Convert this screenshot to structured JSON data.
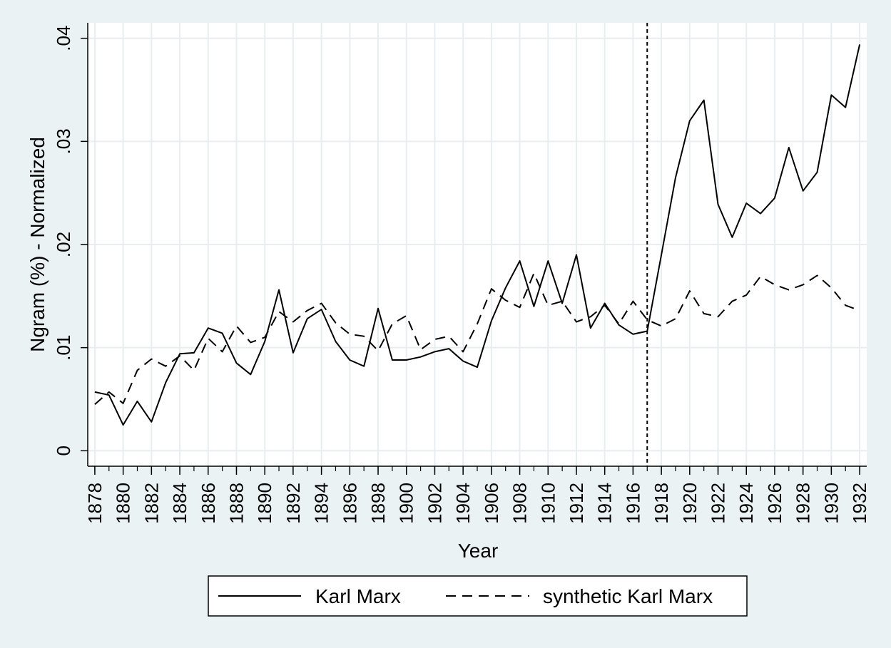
{
  "chart_data": {
    "type": "line",
    "xlabel": "Year",
    "ylabel": "Ngram (%) - Normalized",
    "xlim": [
      1877.5,
      1932.5
    ],
    "ylim": [
      -0.0015,
      0.0415
    ],
    "x_ticks": [
      1878,
      1880,
      1882,
      1884,
      1886,
      1888,
      1890,
      1892,
      1894,
      1896,
      1898,
      1900,
      1902,
      1904,
      1906,
      1908,
      1910,
      1912,
      1914,
      1916,
      1918,
      1920,
      1922,
      1924,
      1926,
      1928,
      1930,
      1932
    ],
    "y_ticks": [
      0,
      0.01,
      0.02,
      0.03,
      0.04
    ],
    "y_tick_labels": [
      "0",
      ".01",
      ".02",
      ".03",
      ".04"
    ],
    "grid": true,
    "vline": {
      "x": 1917,
      "style": "dotted"
    },
    "legend_position": "bottom",
    "x": [
      1878,
      1879,
      1880,
      1881,
      1882,
      1883,
      1884,
      1885,
      1886,
      1887,
      1888,
      1889,
      1890,
      1891,
      1892,
      1893,
      1894,
      1895,
      1896,
      1897,
      1898,
      1899,
      1900,
      1901,
      1902,
      1903,
      1904,
      1905,
      1906,
      1907,
      1908,
      1909,
      1910,
      1911,
      1912,
      1913,
      1914,
      1915,
      1916,
      1917,
      1918,
      1919,
      1920,
      1921,
      1922,
      1923,
      1924,
      1925,
      1926,
      1927,
      1928,
      1929,
      1930,
      1931,
      1932
    ],
    "series": [
      {
        "name": "Karl Marx",
        "style": "solid",
        "color": "#000000",
        "values": [
          0.0057,
          0.0054,
          0.0025,
          0.0048,
          0.0028,
          0.0066,
          0.0094,
          0.0095,
          0.0119,
          0.0114,
          0.0085,
          0.0074,
          0.0106,
          0.0156,
          0.0095,
          0.0128,
          0.0137,
          0.0106,
          0.0088,
          0.0082,
          0.0138,
          0.0088,
          0.0088,
          0.0091,
          0.0096,
          0.0099,
          0.0087,
          0.0081,
          0.0126,
          0.0158,
          0.0184,
          0.014,
          0.0184,
          0.0143,
          0.019,
          0.0119,
          0.0143,
          0.0122,
          0.0113,
          0.0116,
          0.019,
          0.0265,
          0.032,
          0.034,
          0.0239,
          0.0207,
          0.024,
          0.023,
          0.0245,
          0.0294,
          0.0252,
          0.027,
          0.0345,
          0.0333,
          0.0394
        ]
      },
      {
        "name": "synthetic Karl Marx",
        "style": "dashed",
        "color": "#000000",
        "values": [
          0.0045,
          0.0057,
          0.0046,
          0.0078,
          0.0089,
          0.0082,
          0.0092,
          0.0078,
          0.0109,
          0.0096,
          0.0121,
          0.0105,
          0.011,
          0.0135,
          0.0125,
          0.0136,
          0.0143,
          0.0124,
          0.0113,
          0.0111,
          0.0097,
          0.0123,
          0.0131,
          0.0098,
          0.0108,
          0.0111,
          0.0096,
          0.0123,
          0.0157,
          0.0146,
          0.0139,
          0.0172,
          0.0141,
          0.0145,
          0.0125,
          0.013,
          0.0141,
          0.0123,
          0.0145,
          0.0127,
          0.0121,
          0.0128,
          0.0155,
          0.0133,
          0.013,
          0.0145,
          0.0151,
          0.0169,
          0.0161,
          0.0156,
          0.0161,
          0.017,
          0.0158,
          0.0141,
          0.0136
        ]
      }
    ]
  }
}
